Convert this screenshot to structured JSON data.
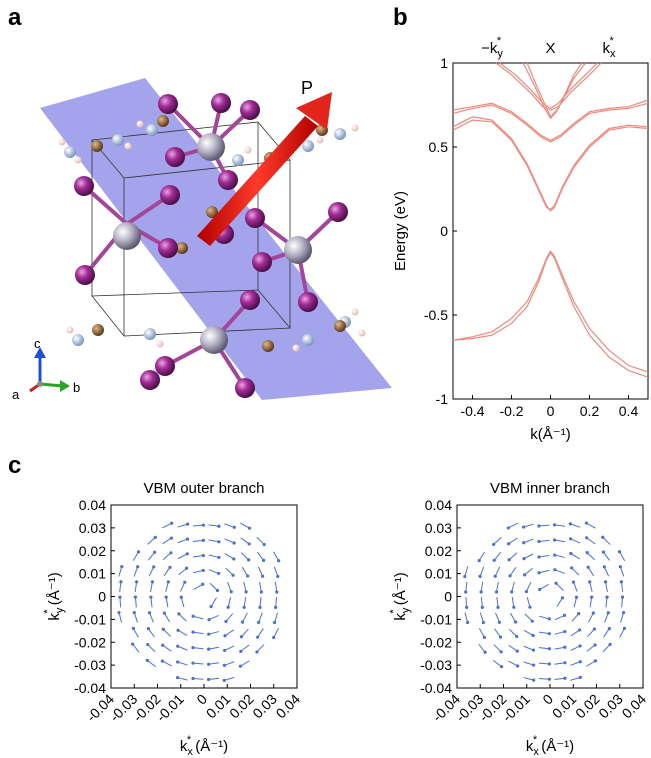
{
  "panels": {
    "a": {
      "letter": "a",
      "arrow_label": "P",
      "axes": {
        "c": "c",
        "a": "a",
        "b": "b"
      }
    },
    "b": {
      "letter": "b"
    },
    "c": {
      "letter": "c"
    }
  },
  "chart_data": [
    {
      "type": "line",
      "panel": "b",
      "xlabel": "k(Å⁻¹)",
      "ylabel": "Energy (eV)",
      "xlim": [
        -0.5,
        0.5
      ],
      "ylim": [
        -1,
        1
      ],
      "xticks": [
        "-0.4",
        "-0.2",
        "0",
        "0.2",
        "0.4"
      ],
      "xtick_values": [
        -0.4,
        -0.2,
        0,
        0.2,
        0.4
      ],
      "yticks": [
        "-1",
        "-0.5",
        "0",
        "0.5",
        "1"
      ],
      "ytick_values": [
        -1,
        -0.5,
        0,
        0.5,
        1
      ],
      "top_labels": [
        {
          "text": "−k",
          "sup": "*",
          "sub": "y",
          "x": -0.3
        },
        {
          "text": "X",
          "sup": "",
          "sub": "",
          "x": 0.0
        },
        {
          "text": "k",
          "sup": "*",
          "sub": "x",
          "x": 0.3
        }
      ],
      "color": "#f08a80",
      "series": [
        {
          "values": [
            [
              -0.5,
              -0.65
            ],
            [
              -0.4,
              -0.63
            ],
            [
              -0.3,
              -0.6
            ],
            [
              -0.2,
              -0.52
            ],
            [
              -0.12,
              -0.42
            ],
            [
              -0.06,
              -0.28
            ],
            [
              -0.02,
              -0.16
            ],
            [
              0,
              -0.12
            ],
            [
              0.02,
              -0.15
            ],
            [
              0.06,
              -0.26
            ],
            [
              0.12,
              -0.42
            ],
            [
              0.2,
              -0.58
            ],
            [
              0.3,
              -0.71
            ],
            [
              0.4,
              -0.8
            ],
            [
              0.5,
              -0.84
            ]
          ]
        },
        {
          "values": [
            [
              -0.5,
              -0.65
            ],
            [
              -0.4,
              -0.64
            ],
            [
              -0.3,
              -0.62
            ],
            [
              -0.2,
              -0.55
            ],
            [
              -0.12,
              -0.45
            ],
            [
              -0.06,
              -0.3
            ],
            [
              -0.02,
              -0.17
            ],
            [
              0,
              -0.13
            ],
            [
              0.02,
              -0.16
            ],
            [
              0.06,
              -0.28
            ],
            [
              0.12,
              -0.45
            ],
            [
              0.2,
              -0.62
            ],
            [
              0.3,
              -0.75
            ],
            [
              0.4,
              -0.83
            ],
            [
              0.5,
              -0.87
            ]
          ]
        },
        {
          "values": [
            [
              -0.5,
              0.62
            ],
            [
              -0.4,
              0.68
            ],
            [
              -0.3,
              0.66
            ],
            [
              -0.2,
              0.55
            ],
            [
              -0.12,
              0.4
            ],
            [
              -0.06,
              0.25
            ],
            [
              -0.02,
              0.15
            ],
            [
              0,
              0.12
            ],
            [
              0.02,
              0.14
            ],
            [
              0.06,
              0.25
            ],
            [
              0.12,
              0.38
            ],
            [
              0.2,
              0.5
            ],
            [
              0.3,
              0.6
            ],
            [
              0.4,
              0.62
            ],
            [
              0.5,
              0.61
            ]
          ]
        },
        {
          "values": [
            [
              -0.5,
              0.6
            ],
            [
              -0.4,
              0.66
            ],
            [
              -0.3,
              0.65
            ],
            [
              -0.2,
              0.54
            ],
            [
              -0.12,
              0.39
            ],
            [
              -0.06,
              0.24
            ],
            [
              -0.02,
              0.14
            ],
            [
              0,
              0.13
            ],
            [
              0.02,
              0.15
            ],
            [
              0.06,
              0.26
            ],
            [
              0.12,
              0.39
            ],
            [
              0.2,
              0.51
            ],
            [
              0.3,
              0.61
            ],
            [
              0.4,
              0.63
            ],
            [
              0.5,
              0.62
            ]
          ]
        },
        {
          "values": [
            [
              -0.5,
              0.7
            ],
            [
              -0.4,
              0.73
            ],
            [
              -0.3,
              0.75
            ],
            [
              -0.2,
              0.7
            ],
            [
              -0.12,
              0.63
            ],
            [
              -0.05,
              0.56
            ],
            [
              0,
              0.53
            ],
            [
              0.05,
              0.56
            ],
            [
              0.12,
              0.63
            ],
            [
              0.2,
              0.7
            ],
            [
              0.3,
              0.72
            ],
            [
              0.4,
              0.73
            ],
            [
              0.5,
              0.76
            ]
          ]
        },
        {
          "values": [
            [
              -0.5,
              0.72
            ],
            [
              -0.4,
              0.74
            ],
            [
              -0.3,
              0.76
            ],
            [
              -0.2,
              0.71
            ],
            [
              -0.12,
              0.64
            ],
            [
              -0.05,
              0.57
            ],
            [
              0,
              0.54
            ],
            [
              0.05,
              0.57
            ],
            [
              0.12,
              0.64
            ],
            [
              0.2,
              0.71
            ],
            [
              0.3,
              0.73
            ],
            [
              0.4,
              0.74
            ],
            [
              0.5,
              0.78
            ]
          ]
        },
        {
          "values": [
            [
              -0.28,
              1.0
            ],
            [
              -0.2,
              0.93
            ],
            [
              -0.1,
              0.82
            ],
            [
              -0.04,
              0.74
            ],
            [
              0,
              0.72
            ],
            [
              0.04,
              0.74
            ],
            [
              0.1,
              0.82
            ],
            [
              0.2,
              0.93
            ],
            [
              0.26,
              1.0
            ]
          ]
        },
        {
          "values": [
            [
              -0.26,
              1.0
            ],
            [
              -0.18,
              0.93
            ],
            [
              -0.1,
              0.84
            ],
            [
              -0.04,
              0.76
            ],
            [
              0,
              0.73
            ],
            [
              0.04,
              0.76
            ],
            [
              0.1,
              0.84
            ],
            [
              0.18,
              0.93
            ],
            [
              0.24,
              1.0
            ]
          ]
        },
        {
          "values": [
            [
              -0.14,
              1.0
            ],
            [
              -0.08,
              0.86
            ],
            [
              -0.03,
              0.73
            ],
            [
              0,
              0.67
            ],
            [
              0.03,
              0.71
            ],
            [
              0.08,
              0.82
            ],
            [
              0.12,
              0.91
            ],
            [
              0.18,
              1.0
            ]
          ]
        },
        {
          "values": [
            [
              -0.12,
              1.0
            ],
            [
              -0.07,
              0.86
            ],
            [
              -0.02,
              0.73
            ],
            [
              0,
              0.68
            ],
            [
              0.04,
              0.73
            ],
            [
              0.08,
              0.83
            ],
            [
              0.12,
              0.93
            ],
            [
              0.16,
              1.0
            ]
          ]
        }
      ]
    },
    {
      "type": "quiver",
      "panel": "c-left",
      "title": "VBM outer branch",
      "xlabel": "k*x (Å⁻¹)",
      "ylabel": "k*y (Å⁻¹)",
      "xlim": [
        -0.04,
        0.04
      ],
      "ylim": [
        -0.04,
        0.04
      ],
      "ticks": [
        "-0.04",
        "-0.03",
        "-0.02",
        "-0.01",
        "0",
        "0.01",
        "0.02",
        "0.03",
        "0.04"
      ],
      "tick_values": [
        -0.04,
        -0.03,
        -0.02,
        -0.01,
        0,
        0.01,
        0.02,
        0.03,
        0.04
      ],
      "rotation": "clockwise",
      "grid_step": 0.0067,
      "color": "#4a6fd8"
    },
    {
      "type": "quiver",
      "panel": "c-right",
      "title": "VBM inner branch",
      "xlabel": "k*x (Å⁻¹)",
      "ylabel": "k*y (Å⁻¹)",
      "xlim": [
        -0.04,
        0.04
      ],
      "ylim": [
        -0.04,
        0.04
      ],
      "ticks": [
        "-0.04",
        "-0.03",
        "-0.02",
        "-0.01",
        "0",
        "0.01",
        "0.02",
        "0.03",
        "0.04"
      ],
      "tick_values": [
        -0.04,
        -0.03,
        -0.02,
        -0.01,
        0,
        0.01,
        0.02,
        0.03,
        0.04
      ],
      "rotation": "counterclockwise",
      "grid_step": 0.0067,
      "color": "#4a6fd8"
    }
  ]
}
